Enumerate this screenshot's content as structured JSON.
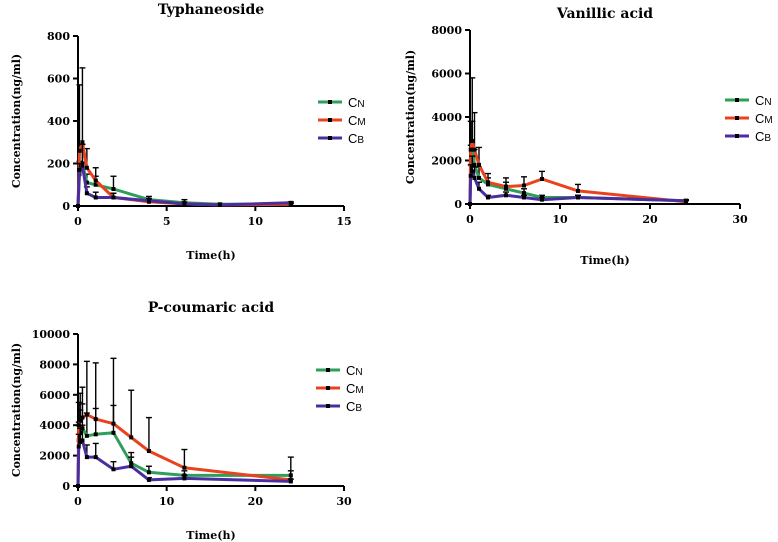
{
  "figure": {
    "series_colors": {
      "CN": "#2e9e5a",
      "CM": "#e8431e",
      "CB": "#4a2ea0"
    }
  },
  "chart_data": [
    {
      "type": "line",
      "title": "Typhaneoside",
      "xlabel": "Time(h)",
      "ylabel": "Concentration(ng/ml)",
      "xlim": [
        0,
        15
      ],
      "ylim": [
        0,
        800
      ],
      "xticks": [
        0,
        5,
        10,
        15
      ],
      "yticks": [
        0,
        200,
        400,
        600,
        800
      ],
      "legend": "right",
      "series": [
        {
          "name": "CN",
          "main": "C",
          "sub": "N",
          "color": "#2e9e5a",
          "x": [
            0,
            0.083,
            0.25,
            0.5,
            1,
            2,
            4,
            6,
            8,
            12
          ],
          "y": [
            0,
            150,
            200,
            110,
            100,
            80,
            30,
            15,
            8,
            10
          ],
          "err": [
            0,
            60,
            90,
            40,
            40,
            60,
            15,
            15,
            5,
            5
          ]
        },
        {
          "name": "CM",
          "main": "C",
          "sub": "M",
          "color": "#e8431e",
          "x": [
            0,
            0.083,
            0.25,
            0.5,
            1,
            2,
            4,
            6,
            8,
            12
          ],
          "y": [
            0,
            260,
            300,
            180,
            120,
            40,
            20,
            10,
            5,
            8
          ],
          "err": [
            0,
            310,
            350,
            90,
            60,
            20,
            10,
            8,
            3,
            3
          ]
        },
        {
          "name": "CB",
          "main": "C",
          "sub": "B",
          "color": "#4a2ea0",
          "x": [
            0,
            0.083,
            0.25,
            0.5,
            1,
            2,
            4,
            6,
            8,
            12
          ],
          "y": [
            0,
            170,
            190,
            60,
            40,
            40,
            25,
            10,
            5,
            15
          ],
          "err": [
            0,
            30,
            100,
            30,
            25,
            20,
            10,
            5,
            3,
            5
          ]
        }
      ]
    },
    {
      "type": "line",
      "title": "Vanillic acid",
      "xlabel": "Time(h)",
      "ylabel": "Concentration(ng/ml)",
      "xlim": [
        0,
        30
      ],
      "ylim": [
        0,
        8000
      ],
      "xticks": [
        0,
        10,
        20,
        30
      ],
      "yticks": [
        0,
        2000,
        4000,
        6000,
        8000
      ],
      "legend": "right",
      "series": [
        {
          "name": "CN",
          "main": "C",
          "sub": "N",
          "color": "#2e9e5a",
          "x": [
            0,
            0.083,
            0.25,
            0.5,
            1,
            2,
            4,
            6,
            8,
            12,
            24
          ],
          "y": [
            0,
            1800,
            2500,
            1800,
            1200,
            900,
            700,
            500,
            300,
            300,
            150
          ],
          "err": [
            0,
            900,
            1300,
            700,
            500,
            300,
            300,
            200,
            100,
            100,
            50
          ]
        },
        {
          "name": "CM",
          "main": "C",
          "sub": "M",
          "color": "#e8431e",
          "x": [
            0,
            0.083,
            0.25,
            0.5,
            1,
            2,
            4,
            6,
            8,
            12,
            24
          ],
          "y": [
            0,
            2500,
            2900,
            2500,
            1800,
            1000,
            800,
            850,
            1150,
            600,
            100
          ],
          "err": [
            0,
            1300,
            2900,
            1700,
            800,
            400,
            400,
            400,
            350,
            300,
            50
          ]
        },
        {
          "name": "CB",
          "main": "C",
          "sub": "B",
          "color": "#4a2ea0",
          "x": [
            0,
            0.083,
            0.25,
            0.5,
            1,
            2,
            4,
            6,
            8,
            12,
            24
          ],
          "y": [
            0,
            1300,
            1500,
            1200,
            700,
            300,
            400,
            300,
            200,
            300,
            150
          ],
          "err": [
            0,
            500,
            700,
            500,
            300,
            100,
            150,
            100,
            80,
            100,
            50
          ]
        }
      ]
    },
    {
      "type": "line",
      "title": "P-coumaric acid",
      "xlabel": "Time(h)",
      "ylabel": "Concentration(ng/ml)",
      "xlim": [
        0,
        30
      ],
      "ylim": [
        0,
        10000
      ],
      "xticks": [
        0,
        10,
        20,
        30
      ],
      "yticks": [
        0,
        2000,
        4000,
        6000,
        8000,
        10000
      ],
      "legend": "right",
      "series": [
        {
          "name": "CN",
          "main": "C",
          "sub": "N",
          "color": "#2e9e5a",
          "x": [
            0,
            0.083,
            0.25,
            0.5,
            1,
            2,
            4,
            6,
            8,
            12,
            24
          ],
          "y": [
            0,
            3000,
            3500,
            3800,
            3300,
            3400,
            3500,
            1500,
            900,
            700,
            700
          ],
          "err": [
            0,
            1200,
            1500,
            1600,
            1500,
            1700,
            1800,
            700,
            400,
            300,
            300
          ]
        },
        {
          "name": "CM",
          "main": "C",
          "sub": "M",
          "color": "#e8431e",
          "x": [
            0,
            0.083,
            0.25,
            0.5,
            1,
            2,
            4,
            6,
            8,
            12,
            24
          ],
          "y": [
            0,
            4000,
            4300,
            4500,
            4700,
            4400,
            4100,
            3200,
            2300,
            1200,
            400
          ],
          "err": [
            0,
            1500,
            1800,
            2000,
            3500,
            3700,
            4300,
            3100,
            2200,
            1200,
            1500
          ]
        },
        {
          "name": "CB",
          "main": "C",
          "sub": "B",
          "color": "#4a2ea0",
          "x": [
            0,
            0.083,
            0.25,
            0.5,
            1,
            2,
            4,
            6,
            8,
            12,
            24
          ],
          "y": [
            0,
            2600,
            2900,
            3000,
            1900,
            1900,
            1100,
            1300,
            400,
            500,
            300
          ],
          "err": [
            0,
            800,
            900,
            1000,
            800,
            900,
            500,
            600,
            150,
            200,
            150
          ]
        }
      ]
    }
  ]
}
